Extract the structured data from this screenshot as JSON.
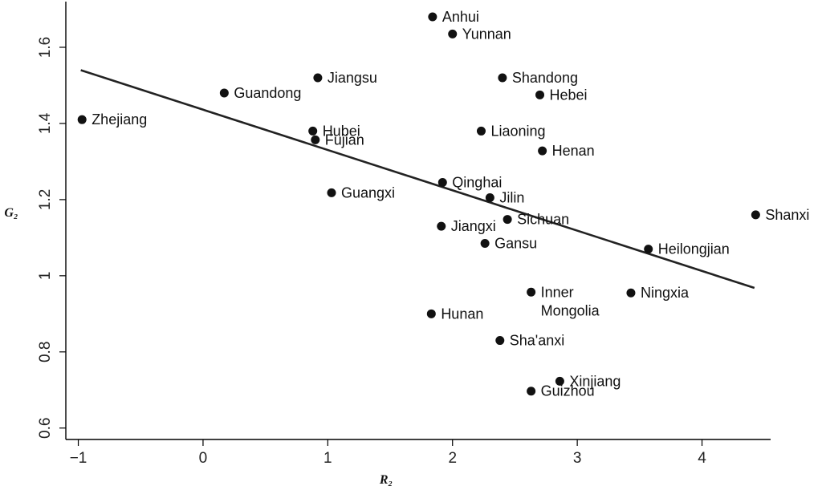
{
  "chart_data": {
    "type": "scatter",
    "xlabel": "R₂",
    "ylabel": "G₂",
    "xlim": [
      -1.1,
      4.55
    ],
    "ylim": [
      0.57,
      1.72
    ],
    "xticks": [
      -1,
      0,
      1,
      2,
      3,
      4
    ],
    "xtick_labels": [
      "−1",
      "0",
      "1",
      "2",
      "3",
      "4"
    ],
    "yticks": [
      0.6,
      0.8,
      1,
      1.2,
      1.4,
      1.6
    ],
    "ytick_labels": [
      "0.6",
      "0.8",
      "1",
      "1.2",
      "1.4",
      "1.6"
    ],
    "grid": false,
    "points": [
      {
        "label": "Anhui",
        "x": 1.84,
        "y": 1.68,
        "label_side": "right"
      },
      {
        "label": "Yunnan",
        "x": 2.0,
        "y": 1.635,
        "label_side": "right"
      },
      {
        "label": "Jiangsu",
        "x": 0.92,
        "y": 1.52,
        "label_side": "right"
      },
      {
        "label": "Shandong",
        "x": 2.4,
        "y": 1.52,
        "label_side": "right"
      },
      {
        "label": "Guandong",
        "x": 0.17,
        "y": 1.48,
        "label_side": "right"
      },
      {
        "label": "Hebei",
        "x": 2.7,
        "y": 1.475,
        "label_side": "right"
      },
      {
        "label": "Zhejiang",
        "x": -0.97,
        "y": 1.41,
        "label_side": "right"
      },
      {
        "label": "Hubei",
        "x": 0.88,
        "y": 1.38,
        "label_side": "right"
      },
      {
        "label": "Liaoning",
        "x": 2.23,
        "y": 1.38,
        "label_side": "right"
      },
      {
        "label": "Fujian",
        "x": 0.9,
        "y": 1.357,
        "label_side": "right"
      },
      {
        "label": "Henan",
        "x": 2.72,
        "y": 1.328,
        "label_side": "right"
      },
      {
        "label": "Qinghai",
        "x": 1.92,
        "y": 1.245,
        "label_side": "right"
      },
      {
        "label": "Guangxi",
        "x": 1.03,
        "y": 1.218,
        "label_side": "right"
      },
      {
        "label": "Jilin",
        "x": 2.3,
        "y": 1.205,
        "label_side": "right"
      },
      {
        "label": "Shanxi",
        "x": 4.43,
        "y": 1.16,
        "label_side": "right"
      },
      {
        "label": "Sichuan",
        "x": 2.44,
        "y": 1.148,
        "label_side": "right"
      },
      {
        "label": "Jiangxi",
        "x": 1.91,
        "y": 1.13,
        "label_side": "right"
      },
      {
        "label": "Gansu",
        "x": 2.26,
        "y": 1.085,
        "label_side": "right"
      },
      {
        "label": "Heilongjian",
        "x": 3.57,
        "y": 1.07,
        "label_side": "right"
      },
      {
        "label": "Inner Mongolia",
        "label_lines": [
          "Inner",
          "Mongolia"
        ],
        "x": 2.63,
        "y": 0.957,
        "label_side": "right"
      },
      {
        "label": "Ningxia",
        "x": 3.43,
        "y": 0.955,
        "label_side": "right"
      },
      {
        "label": "Hunan",
        "x": 1.83,
        "y": 0.9,
        "label_side": "right"
      },
      {
        "label": "Sha'anxi",
        "x": 2.38,
        "y": 0.83,
        "label_side": "right"
      },
      {
        "label": "Xinjiang",
        "x": 2.86,
        "y": 0.723,
        "label_side": "right"
      },
      {
        "label": "Guizhou",
        "x": 2.63,
        "y": 0.697,
        "label_side": "right"
      }
    ],
    "fit_line": {
      "x": [
        -0.98,
        4.42
      ],
      "y": [
        1.54,
        0.968
      ]
    }
  }
}
